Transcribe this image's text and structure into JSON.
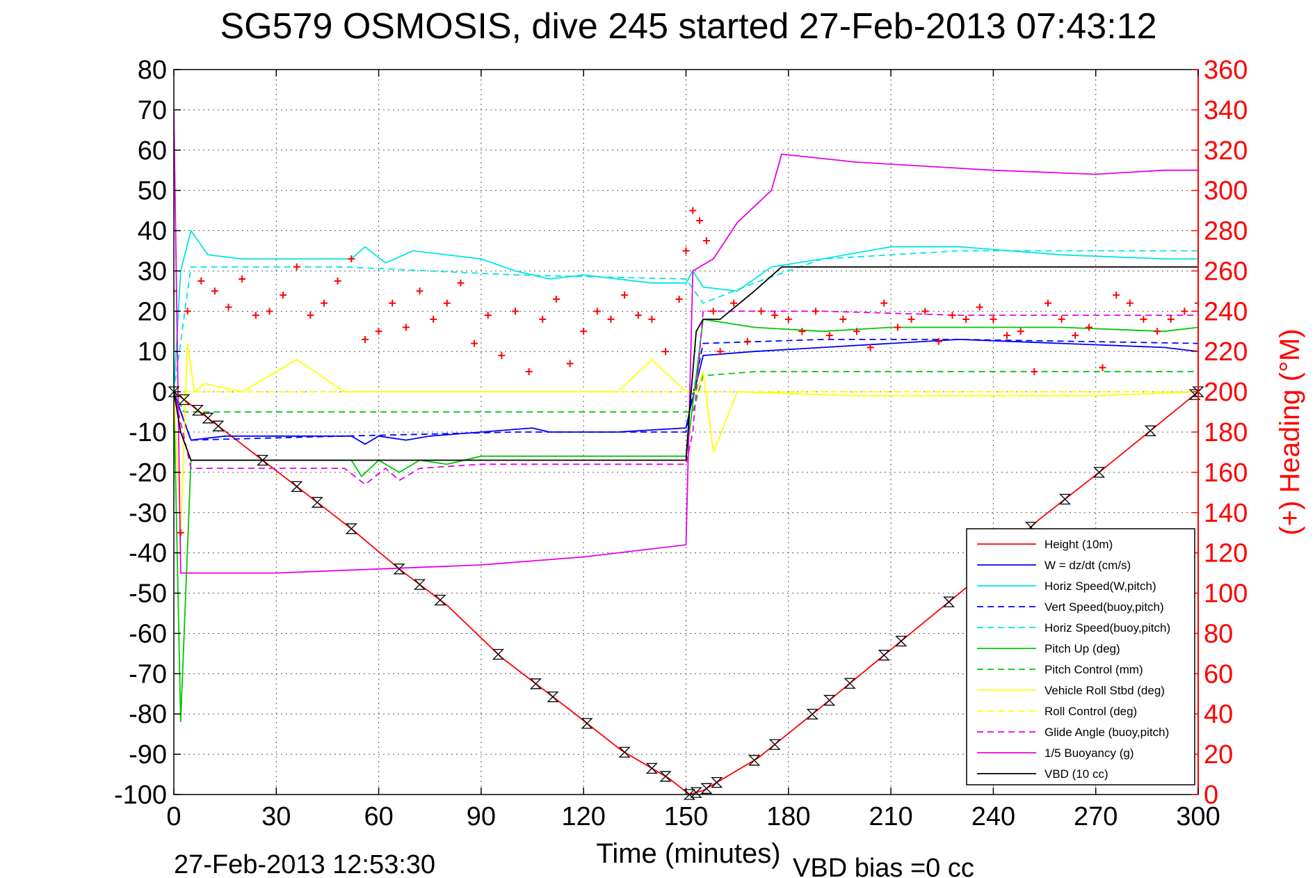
{
  "chart_data": {
    "type": "line",
    "title": "SG579 OSMOSIS, dive 245 started 27-Feb-2013 07:43:12",
    "xlabel": "Time (minutes)",
    "ylabel": "",
    "y2label": "(+) Heading (°M)",
    "footer_left": "27-Feb-2013 12:53:30",
    "footer_right": "VBD bias =0 cc",
    "xlim": [
      0,
      300
    ],
    "ylim": [
      -100,
      80
    ],
    "y2lim": [
      0,
      360
    ],
    "xticks": [
      0,
      30,
      60,
      90,
      120,
      150,
      180,
      210,
      240,
      270,
      300
    ],
    "yticks": [
      80,
      70,
      60,
      50,
      40,
      30,
      20,
      10,
      0,
      -10,
      -20,
      -30,
      -40,
      -50,
      -60,
      -70,
      -80,
      -90,
      -100
    ],
    "y2ticks": [
      360,
      340,
      320,
      300,
      280,
      260,
      240,
      220,
      200,
      180,
      160,
      140,
      120,
      100,
      80,
      60,
      40,
      20,
      0
    ],
    "grid": true,
    "legend_position": "bottom-right",
    "colors": {
      "heading_axis": "#ff0000",
      "heading_marker": "#ff0000"
    },
    "series": [
      {
        "name": "Height (10m)",
        "color": "#ff0000",
        "dash": "solid",
        "x": [
          0,
          26,
          52,
          66,
          80,
          96,
          116,
          131,
          145,
          151,
          155,
          171,
          190,
          210,
          233,
          253,
          271,
          287,
          300
        ],
        "y": [
          0,
          -17,
          -34,
          -44,
          -53,
          -66,
          -79,
          -89,
          -96,
          -100,
          -99,
          -91,
          -78,
          -64,
          -48,
          -32,
          -20,
          -9,
          0
        ],
        "markers": [
          0,
          3,
          7,
          10,
          13,
          26,
          36,
          42,
          52,
          66,
          72,
          78,
          95,
          106,
          111,
          121,
          132,
          140,
          144,
          151,
          153,
          156,
          159,
          170,
          176,
          187,
          192,
          198,
          208,
          213,
          227,
          251,
          261,
          271,
          286,
          299,
          300
        ]
      },
      {
        "name": "W = dz/dt (cm/s)",
        "color": "#0000ff",
        "dash": "solid",
        "x": [
          0,
          2,
          5,
          15,
          30,
          52,
          56,
          60,
          68,
          75,
          90,
          105,
          110,
          130,
          150,
          151,
          155,
          170,
          190,
          210,
          230,
          260,
          290,
          300
        ],
        "y": [
          0,
          -5,
          -12,
          -11,
          -11,
          -11,
          -13,
          -11,
          -12,
          -11,
          -10,
          -9,
          -10,
          -10,
          -9,
          -5,
          9,
          10,
          11,
          12,
          13,
          12,
          11,
          10
        ]
      },
      {
        "name": "Horiz Speed(W,pitch)",
        "color": "#00e5e5",
        "dash": "solid",
        "x": [
          0,
          2,
          5,
          10,
          20,
          40,
          52,
          56,
          62,
          70,
          80,
          90,
          100,
          110,
          120,
          130,
          140,
          150,
          152,
          155,
          165,
          175,
          190,
          210,
          230,
          260,
          290,
          300
        ],
        "y": [
          0,
          30,
          40,
          34,
          33,
          33,
          33,
          36,
          32,
          35,
          34,
          33,
          30,
          28,
          29,
          28,
          27,
          27,
          30,
          26,
          25,
          31,
          33,
          36,
          36,
          34,
          33,
          33
        ]
      },
      {
        "name": "Vert Speed(buoy,pitch)",
        "color": "#0000ff",
        "dash": "dashed",
        "x": [
          0,
          5,
          50,
          100,
          150,
          151,
          155,
          190,
          230,
          300
        ],
        "y": [
          0,
          -12,
          -11,
          -10,
          -10,
          -5,
          12,
          13,
          13,
          12
        ]
      },
      {
        "name": "Horiz Speed(buoy,pitch)",
        "color": "#00e5e5",
        "dash": "dashed",
        "x": [
          0,
          5,
          50,
          100,
          150,
          155,
          170,
          190,
          230,
          300
        ],
        "y": [
          0,
          31,
          31,
          29,
          28,
          22,
          27,
          33,
          35,
          35
        ]
      },
      {
        "name": "Pitch Up (deg)",
        "color": "#00c800",
        "dash": "solid",
        "x": [
          0,
          2,
          5,
          20,
          52,
          55,
          60,
          66,
          72,
          80,
          90,
          110,
          130,
          150,
          151,
          155,
          170,
          190,
          210,
          230,
          260,
          290,
          300
        ],
        "y": [
          0,
          -82,
          -17,
          -17,
          -17,
          -21,
          -17,
          -20,
          -17,
          -18,
          -16,
          -16,
          -16,
          -16,
          -10,
          18,
          16,
          15,
          16,
          16,
          16,
          15,
          16
        ]
      },
      {
        "name": "Pitch Control (mm)",
        "color": "#00c800",
        "dash": "dashed",
        "x": [
          0,
          3,
          50,
          150,
          152,
          155,
          170,
          300
        ],
        "y": [
          0,
          -5,
          -5,
          -5,
          -5,
          4,
          5,
          5
        ]
      },
      {
        "name": "Vehicle Roll Stbd (deg)",
        "color": "#ffff00",
        "dash": "solid",
        "x": [
          0,
          2,
          4,
          6,
          9,
          20,
          36,
          50,
          60,
          90,
          110,
          130,
          140,
          150,
          153,
          155,
          158,
          165,
          200,
          240,
          270,
          300
        ],
        "y": [
          0,
          -35,
          12,
          0,
          2,
          0,
          8,
          0,
          0,
          0,
          0,
          0,
          8,
          0,
          0,
          5,
          -15,
          0,
          -1,
          -1,
          -1,
          0
        ]
      },
      {
        "name": "Roll Control (deg)",
        "color": "#ffff00",
        "dash": "dashed",
        "x": [
          0,
          10,
          150,
          152,
          300
        ],
        "y": [
          0,
          0,
          0,
          0,
          0
        ]
      },
      {
        "name": "Glide Angle (buoy,pitch)",
        "color": "#e600e6",
        "dash": "dashed",
        "x": [
          0,
          5,
          50,
          56,
          62,
          66,
          72,
          90,
          110,
          150,
          152,
          155,
          190,
          230,
          300
        ],
        "y": [
          0,
          -19,
          -19,
          -23,
          -19,
          -22,
          -19,
          -18,
          -18,
          -18,
          -10,
          20,
          20,
          19,
          19
        ]
      },
      {
        "name": "1/5 Buoyancy (g)",
        "color": "#e600e6",
        "dash": "solid",
        "x": [
          0,
          2,
          30,
          60,
          90,
          120,
          150,
          152,
          158,
          165,
          175,
          178,
          200,
          240,
          270,
          290,
          300
        ],
        "y": [
          70,
          -45,
          -45,
          -44,
          -43,
          -41,
          -38,
          30,
          33,
          42,
          50,
          59,
          57,
          55,
          54,
          55,
          55
        ]
      },
      {
        "name": "VBD (10 cc)",
        "color": "#000000",
        "dash": "solid",
        "x": [
          0,
          2,
          5,
          150,
          151,
          153,
          155,
          160,
          170,
          178,
          300
        ],
        "y": [
          0,
          -10,
          -17,
          -17,
          -5,
          15,
          18,
          18,
          25,
          31,
          31
        ]
      }
    ],
    "heading_markers": {
      "name": "Heading",
      "x": [
        0,
        2,
        4,
        8,
        12,
        16,
        20,
        24,
        28,
        32,
        36,
        40,
        44,
        48,
        52,
        56,
        60,
        64,
        68,
        72,
        76,
        80,
        84,
        88,
        92,
        96,
        100,
        104,
        108,
        112,
        116,
        120,
        124,
        128,
        132,
        136,
        140,
        144,
        148,
        150,
        152,
        154,
        156,
        158,
        160,
        164,
        168,
        172,
        176,
        180,
        184,
        188,
        192,
        196,
        200,
        204,
        208,
        212,
        216,
        220,
        224,
        228,
        232,
        236,
        240,
        244,
        248,
        252,
        256,
        260,
        264,
        268,
        272,
        276,
        280,
        284,
        288,
        292,
        296,
        300
      ],
      "y": [
        250,
        130,
        240,
        255,
        250,
        242,
        256,
        238,
        240,
        248,
        262,
        238,
        244,
        255,
        266,
        226,
        230,
        244,
        232,
        250,
        236,
        244,
        254,
        224,
        238,
        218,
        240,
        210,
        236,
        246,
        214,
        230,
        240,
        236,
        248,
        238,
        236,
        220,
        246,
        270,
        290,
        285,
        275,
        240,
        220,
        244,
        225,
        240,
        238,
        236,
        230,
        240,
        228,
        236,
        230,
        222,
        244,
        232,
        236,
        240,
        225,
        238,
        236,
        242,
        236,
        228,
        230,
        210,
        244,
        236,
        228,
        232,
        212,
        248,
        244,
        236,
        230,
        236,
        240,
        244
      ]
    }
  }
}
